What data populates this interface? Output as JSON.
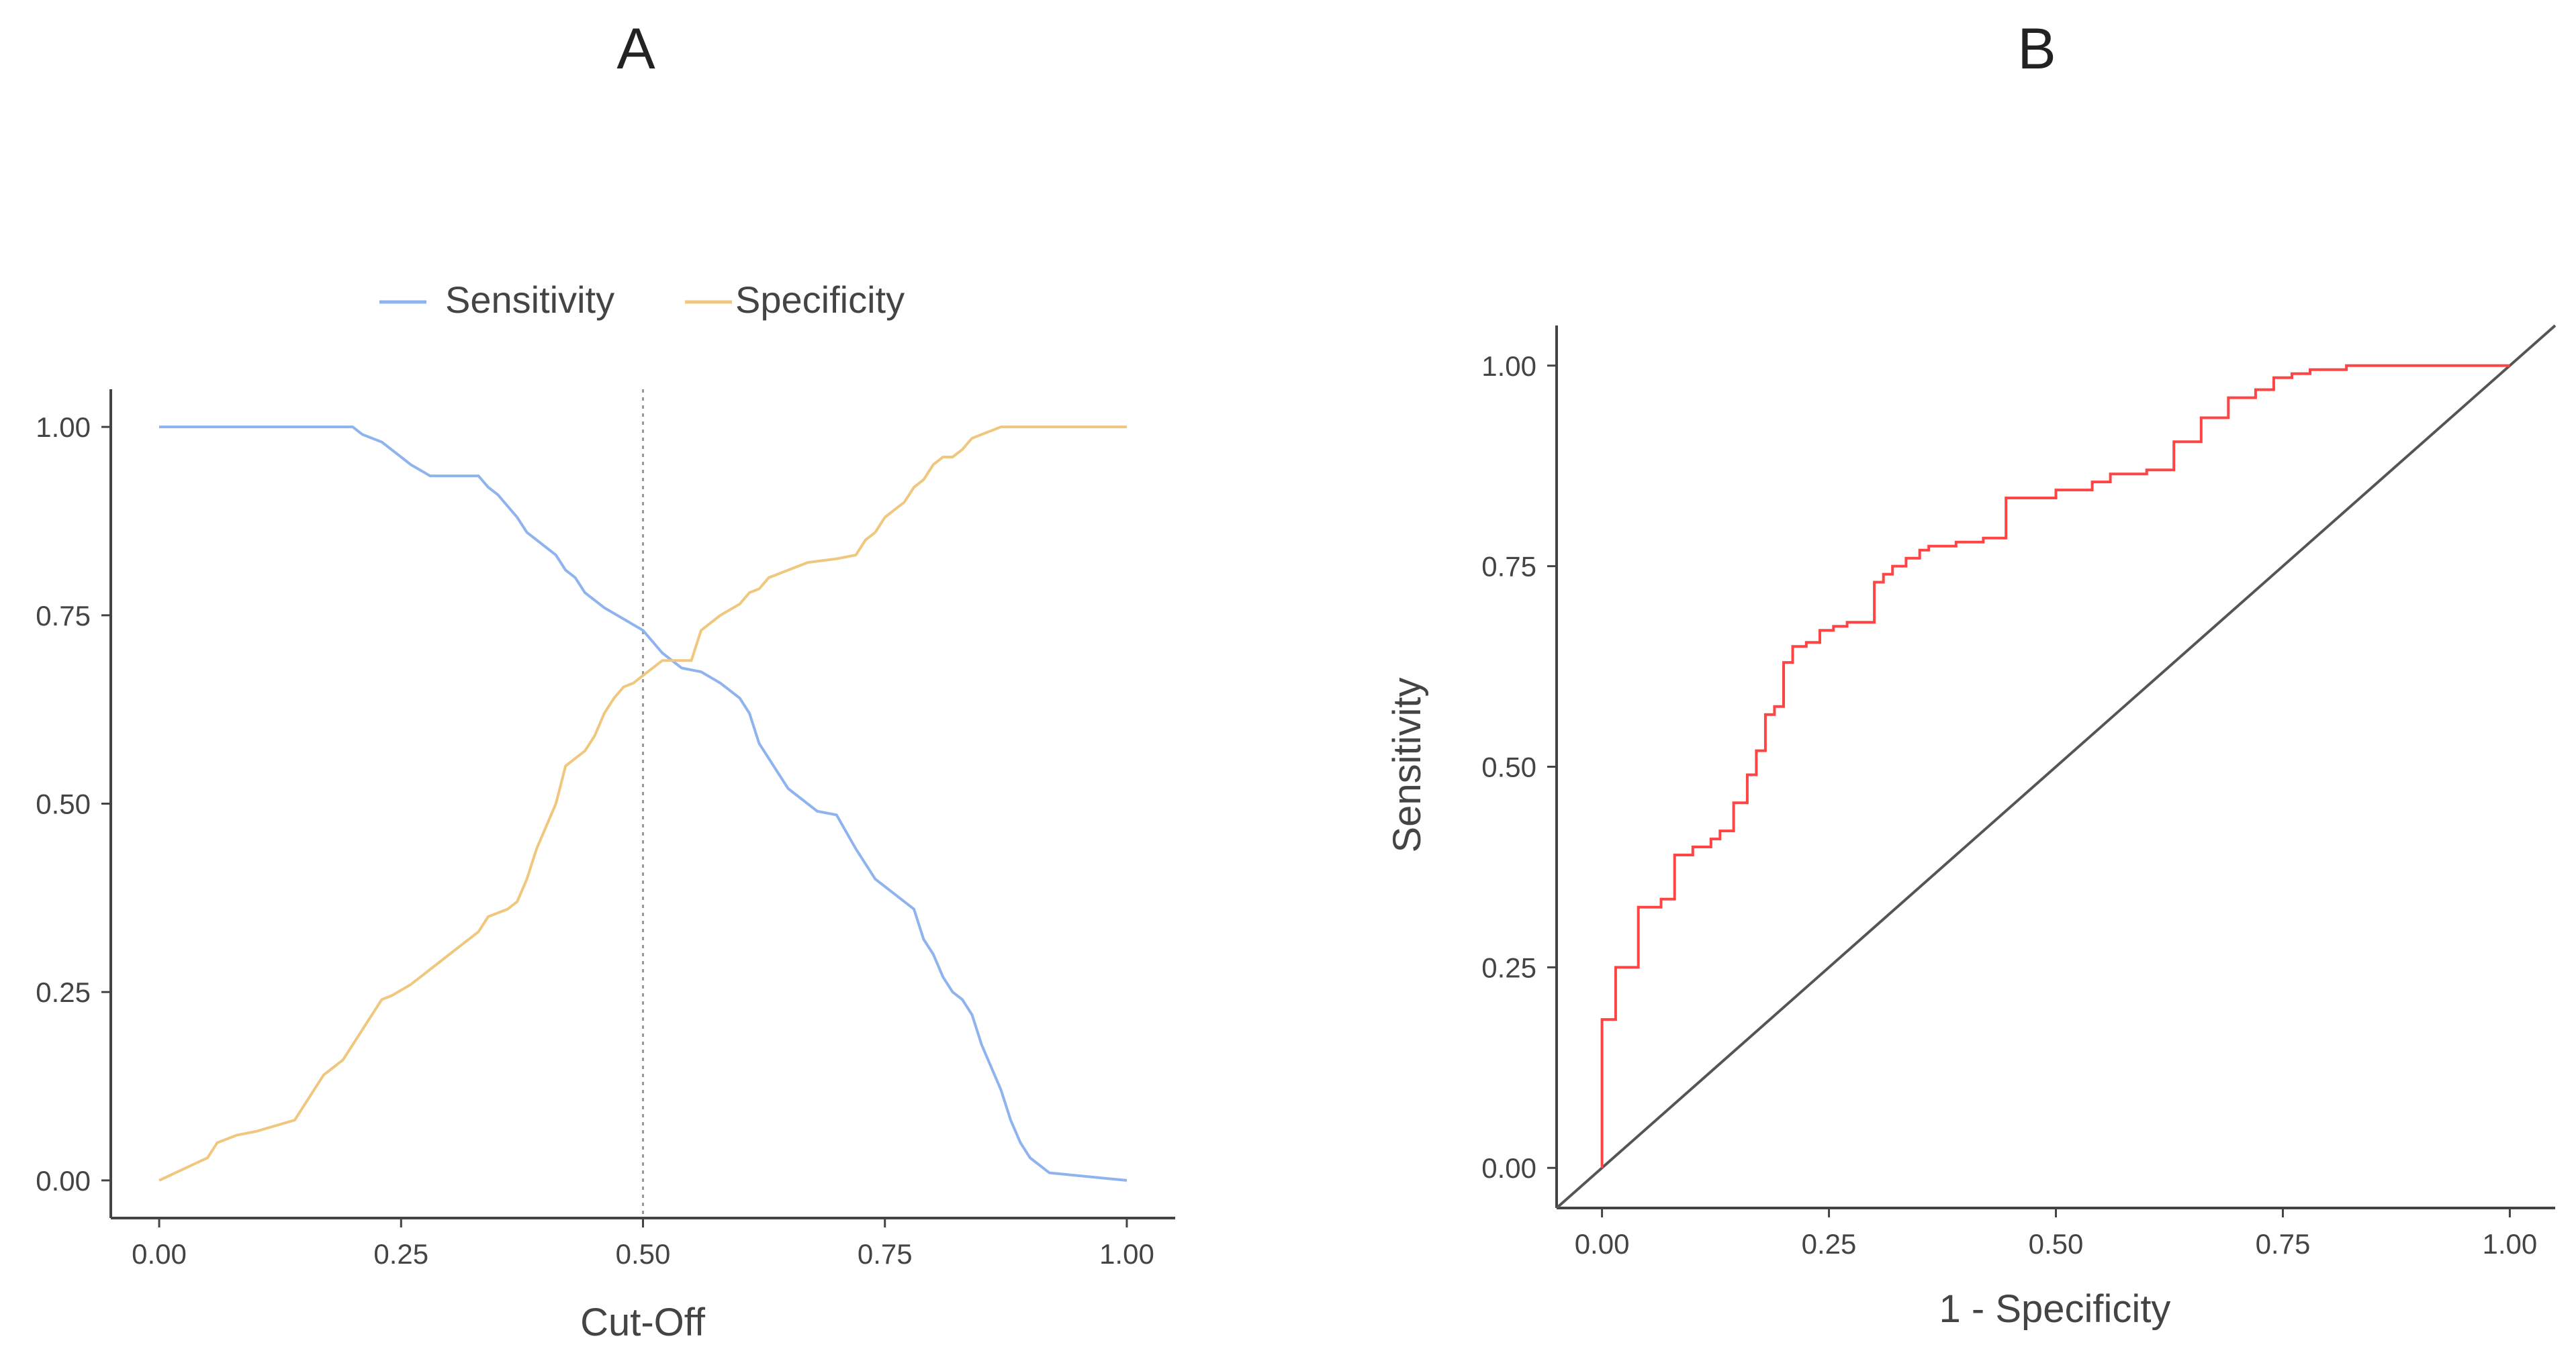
{
  "colors": {
    "sensitivity": "#8fb3ee",
    "specificity": "#f0c77e",
    "roc": "#ff4444",
    "diagonal": "#555555",
    "axis": "#444444",
    "text": "#444444",
    "cutoff_line": "#999999"
  },
  "chart_data": [
    {
      "type": "line",
      "panel": "A",
      "title": "A",
      "xlabel": "Cut-Off",
      "ylabel": "",
      "xlim": [
        -0.05,
        1.05
      ],
      "ylim": [
        -0.05,
        1.05
      ],
      "x_ticks": [
        "0.00",
        "0.25",
        "0.50",
        "0.75",
        "1.00"
      ],
      "y_ticks": [
        "0.00",
        "0.25",
        "0.50",
        "0.75",
        "1.00"
      ],
      "grid": false,
      "legend": {
        "position": "top",
        "entries": [
          "Sensitivity",
          "Specificity"
        ]
      },
      "cutoff": 0.5,
      "series": [
        {
          "name": "Sensitivity",
          "x": [
            0.0,
            0.1,
            0.2,
            0.21,
            0.23,
            0.24,
            0.25,
            0.26,
            0.28,
            0.33,
            0.34,
            0.35,
            0.37,
            0.38,
            0.39,
            0.41,
            0.42,
            0.43,
            0.44,
            0.46,
            0.48,
            0.5,
            0.52,
            0.54,
            0.56,
            0.58,
            0.6,
            0.61,
            0.62,
            0.63,
            0.64,
            0.65,
            0.67,
            0.68,
            0.7,
            0.72,
            0.73,
            0.74,
            0.75,
            0.76,
            0.78,
            0.79,
            0.8,
            0.81,
            0.82,
            0.83,
            0.84,
            0.85,
            0.86,
            0.87,
            0.88,
            0.89,
            0.9,
            0.91,
            0.92,
            1.0
          ],
          "values": [
            1.0,
            1.0,
            1.0,
            0.99,
            0.98,
            0.97,
            0.96,
            0.95,
            0.935,
            0.935,
            0.92,
            0.91,
            0.88,
            0.86,
            0.85,
            0.83,
            0.81,
            0.8,
            0.78,
            0.76,
            0.745,
            0.73,
            0.7,
            0.68,
            0.675,
            0.66,
            0.64,
            0.62,
            0.58,
            0.56,
            0.54,
            0.52,
            0.5,
            0.49,
            0.485,
            0.44,
            0.42,
            0.4,
            0.39,
            0.38,
            0.36,
            0.32,
            0.3,
            0.27,
            0.25,
            0.24,
            0.22,
            0.18,
            0.15,
            0.12,
            0.08,
            0.05,
            0.03,
            0.02,
            0.01,
            0.0
          ]
        },
        {
          "name": "Specificity",
          "x": [
            0.0,
            0.05,
            0.06,
            0.08,
            0.1,
            0.14,
            0.15,
            0.16,
            0.17,
            0.18,
            0.19,
            0.2,
            0.21,
            0.22,
            0.23,
            0.24,
            0.26,
            0.28,
            0.3,
            0.32,
            0.33,
            0.34,
            0.35,
            0.36,
            0.37,
            0.38,
            0.39,
            0.4,
            0.41,
            0.42,
            0.43,
            0.44,
            0.45,
            0.46,
            0.47,
            0.48,
            0.49,
            0.5,
            0.51,
            0.52,
            0.55,
            0.56,
            0.57,
            0.58,
            0.6,
            0.61,
            0.62,
            0.63,
            0.65,
            0.67,
            0.7,
            0.72,
            0.73,
            0.74,
            0.75,
            0.76,
            0.77,
            0.78,
            0.79,
            0.8,
            0.81,
            0.82,
            0.83,
            0.84,
            0.85,
            0.87,
            0.88,
            1.0
          ],
          "values": [
            0.0,
            0.03,
            0.05,
            0.06,
            0.065,
            0.08,
            0.1,
            0.12,
            0.14,
            0.15,
            0.16,
            0.18,
            0.2,
            0.22,
            0.24,
            0.245,
            0.26,
            0.28,
            0.3,
            0.32,
            0.33,
            0.35,
            0.355,
            0.36,
            0.37,
            0.4,
            0.44,
            0.47,
            0.5,
            0.55,
            0.56,
            0.57,
            0.59,
            0.62,
            0.64,
            0.655,
            0.66,
            0.67,
            0.68,
            0.69,
            0.69,
            0.73,
            0.74,
            0.75,
            0.765,
            0.78,
            0.785,
            0.8,
            0.81,
            0.82,
            0.825,
            0.83,
            0.85,
            0.86,
            0.88,
            0.89,
            0.9,
            0.92,
            0.93,
            0.95,
            0.96,
            0.96,
            0.97,
            0.985,
            0.99,
            1.0,
            1.0,
            1.0
          ]
        }
      ]
    },
    {
      "type": "line",
      "panel": "B",
      "title": "B",
      "xlabel": "1 - Specificity",
      "ylabel": "Sensitivity",
      "xlim": [
        -0.05,
        1.05
      ],
      "ylim": [
        -0.05,
        1.05
      ],
      "x_ticks": [
        "0.00",
        "0.25",
        "0.50",
        "0.75",
        "1.00"
      ],
      "y_ticks": [
        "0.00",
        "0.25",
        "0.50",
        "0.75",
        "1.00"
      ],
      "grid": false,
      "legend": null,
      "series": [
        {
          "name": "ROC",
          "x": [
            0.0,
            0.0,
            0.015,
            0.015,
            0.04,
            0.04,
            0.065,
            0.065,
            0.08,
            0.08,
            0.1,
            0.1,
            0.12,
            0.12,
            0.13,
            0.13,
            0.145,
            0.145,
            0.16,
            0.16,
            0.17,
            0.17,
            0.18,
            0.18,
            0.19,
            0.19,
            0.2,
            0.2,
            0.21,
            0.21,
            0.225,
            0.225,
            0.24,
            0.24,
            0.255,
            0.255,
            0.27,
            0.27,
            0.3,
            0.3,
            0.31,
            0.31,
            0.32,
            0.32,
            0.335,
            0.335,
            0.35,
            0.35,
            0.36,
            0.36,
            0.39,
            0.39,
            0.42,
            0.42,
            0.445,
            0.445,
            0.5,
            0.5,
            0.54,
            0.54,
            0.56,
            0.56,
            0.6,
            0.6,
            0.63,
            0.63,
            0.66,
            0.66,
            0.69,
            0.69,
            0.72,
            0.72,
            0.74,
            0.74,
            0.76,
            0.76,
            0.78,
            0.78,
            0.82,
            0.82,
            1.0
          ],
          "values": [
            0.0,
            0.185,
            0.185,
            0.25,
            0.25,
            0.325,
            0.325,
            0.335,
            0.335,
            0.39,
            0.39,
            0.4,
            0.4,
            0.41,
            0.41,
            0.42,
            0.42,
            0.455,
            0.455,
            0.49,
            0.49,
            0.52,
            0.52,
            0.565,
            0.565,
            0.575,
            0.575,
            0.63,
            0.63,
            0.65,
            0.65,
            0.655,
            0.655,
            0.67,
            0.67,
            0.675,
            0.675,
            0.68,
            0.68,
            0.73,
            0.73,
            0.74,
            0.74,
            0.75,
            0.75,
            0.76,
            0.76,
            0.77,
            0.77,
            0.775,
            0.775,
            0.78,
            0.78,
            0.785,
            0.785,
            0.835,
            0.835,
            0.845,
            0.845,
            0.855,
            0.855,
            0.865,
            0.865,
            0.87,
            0.87,
            0.905,
            0.905,
            0.935,
            0.935,
            0.96,
            0.96,
            0.97,
            0.97,
            0.985,
            0.985,
            0.99,
            0.99,
            0.995,
            0.995,
            1.0,
            1.0
          ]
        },
        {
          "name": "Reference",
          "x": [
            -0.05,
            1.05
          ],
          "values": [
            -0.05,
            1.05
          ]
        }
      ]
    }
  ]
}
